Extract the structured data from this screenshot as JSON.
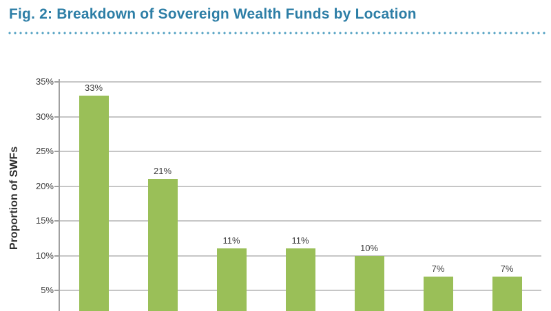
{
  "figure": {
    "title": "Fig. 2: Breakdown of Sovereign Wealth Funds by Location"
  },
  "chart_data": {
    "type": "bar",
    "title": "Fig. 2: Breakdown of Sovereign Wealth Funds by Location",
    "ylabel": "Proportion of SWFs",
    "values": [
      33,
      21,
      11,
      11,
      10,
      7,
      7
    ],
    "bar_labels": [
      "33%",
      "21%",
      "11%",
      "11%",
      "10%",
      "7%",
      "7%"
    ],
    "yticks": [
      {
        "value": 35,
        "label": "35%"
      },
      {
        "value": 30,
        "label": "30%"
      },
      {
        "value": 25,
        "label": "25%"
      },
      {
        "value": 20,
        "label": "20%"
      },
      {
        "value": 15,
        "label": "15%"
      },
      {
        "value": 10,
        "label": "10%"
      },
      {
        "value": 5,
        "label": "5%"
      }
    ],
    "ylim": [
      0,
      35
    ],
    "grid": true,
    "legend": "none",
    "colors": {
      "bar": "#9abf58",
      "title": "#2d7ea6",
      "dotted_rule": "#4f9fc1",
      "gridline": "#c6c6c6",
      "axis_line": "#a0a0a0",
      "axis_text": "#3d3d3d",
      "ylabel_text": "#2e2e2e"
    }
  }
}
